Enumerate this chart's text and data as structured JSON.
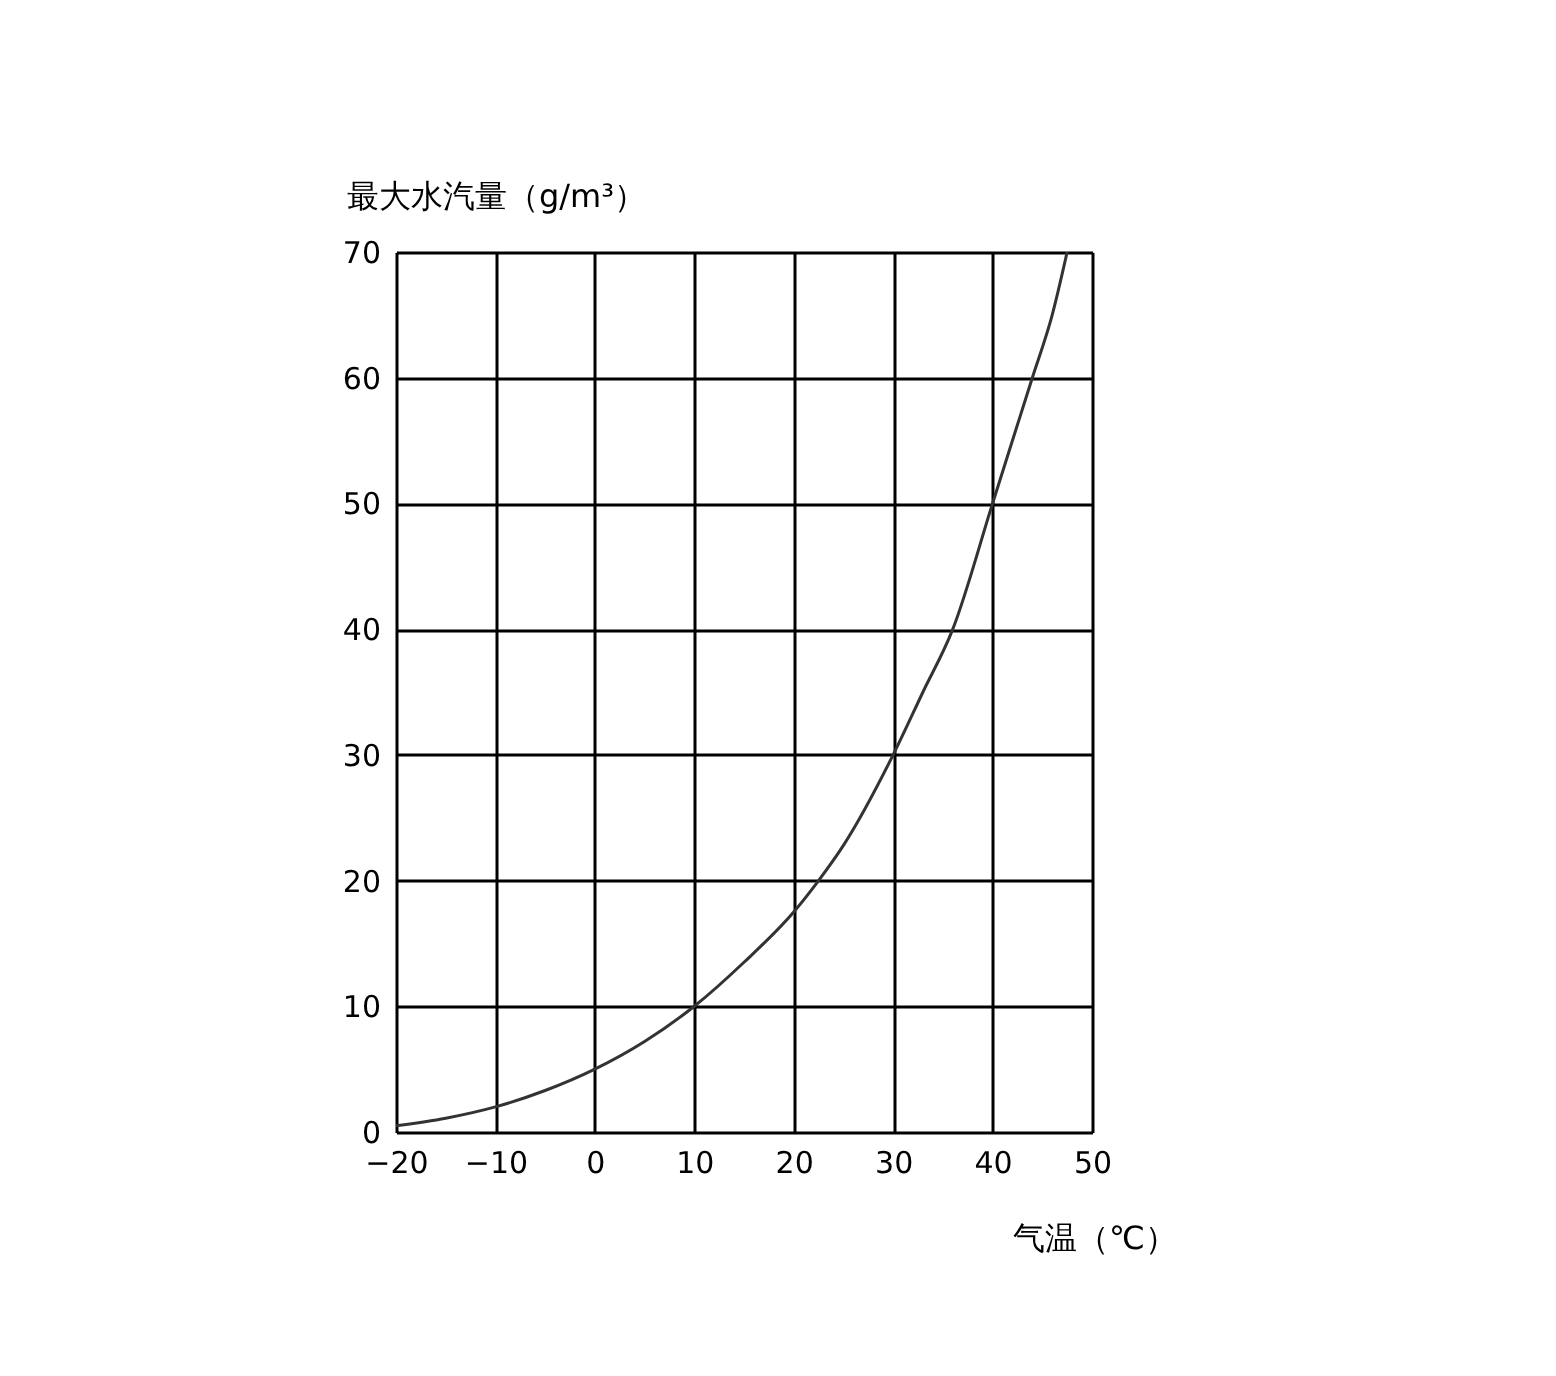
{
  "chart_data": {
    "type": "line",
    "xlabel": "气温（℃）",
    "ylabel": "最大水汽量（g/m³）",
    "x": [
      -20,
      -15,
      -10,
      -5,
      0,
      5,
      10,
      15,
      20,
      22.5,
      25,
      30,
      33,
      36,
      40,
      42,
      44,
      46,
      47.5
    ],
    "series": [
      {
        "color": "#333333",
        "values": [
          0.5,
          1.1,
          2,
          3.3,
          5,
          7.2,
          10,
          13.5,
          17.5,
          20,
          22.8,
          30,
          35,
          40,
          50,
          55,
          60,
          65,
          70
        ]
      }
    ],
    "xlim": [
      -20,
      50
    ],
    "xticks": [
      -20,
      -10,
      0,
      10,
      20,
      30,
      40,
      50
    ],
    "ylim": [
      0,
      70
    ],
    "yticks": [
      0,
      10,
      20,
      30,
      40,
      50,
      60,
      70
    ],
    "grid": true,
    "marker": "none",
    "line_style": "solid"
  }
}
